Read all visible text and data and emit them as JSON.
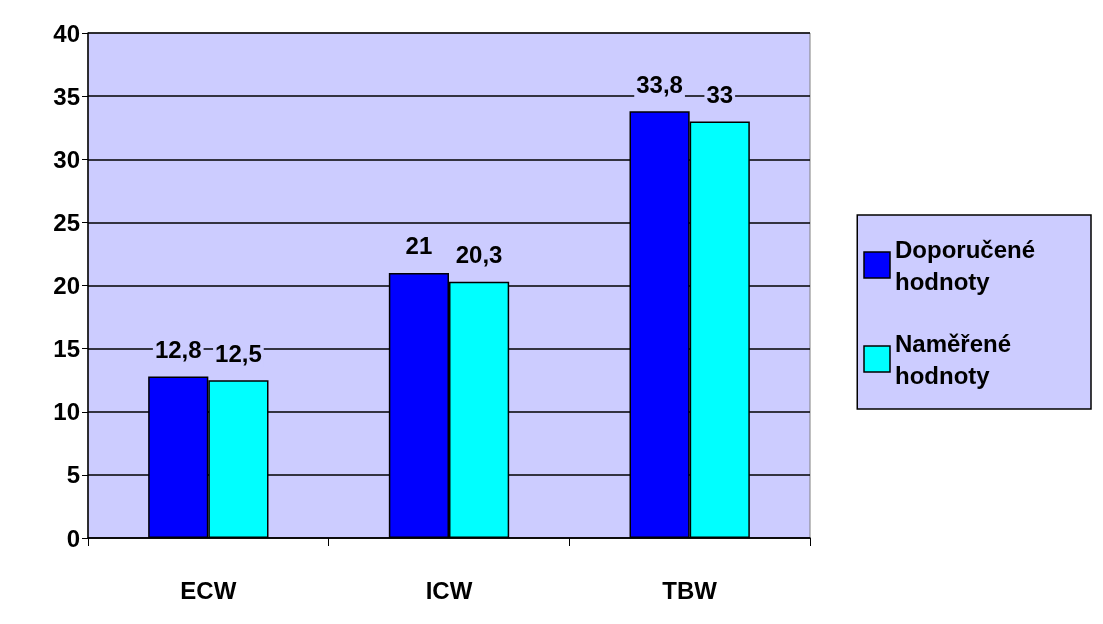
{
  "chart_data": {
    "type": "bar",
    "categories": [
      "ECW",
      "ICW",
      "TBW"
    ],
    "series": [
      {
        "name": "Doporučené hodnoty",
        "color": "#0000ff",
        "values": [
          12.8,
          21,
          33.8
        ],
        "value_labels": [
          "12,8",
          "21",
          "33,8"
        ]
      },
      {
        "name": "Naměřené hodnoty",
        "color": "#00ffff",
        "values": [
          12.5,
          20.3,
          33
        ],
        "value_labels": [
          "12,5",
          "20,3",
          "33"
        ]
      }
    ],
    "ylim": [
      0,
      40
    ],
    "yticks": [
      0,
      5,
      10,
      15,
      20,
      25,
      30,
      35,
      40
    ],
    "grid": "y",
    "legend": "right"
  }
}
